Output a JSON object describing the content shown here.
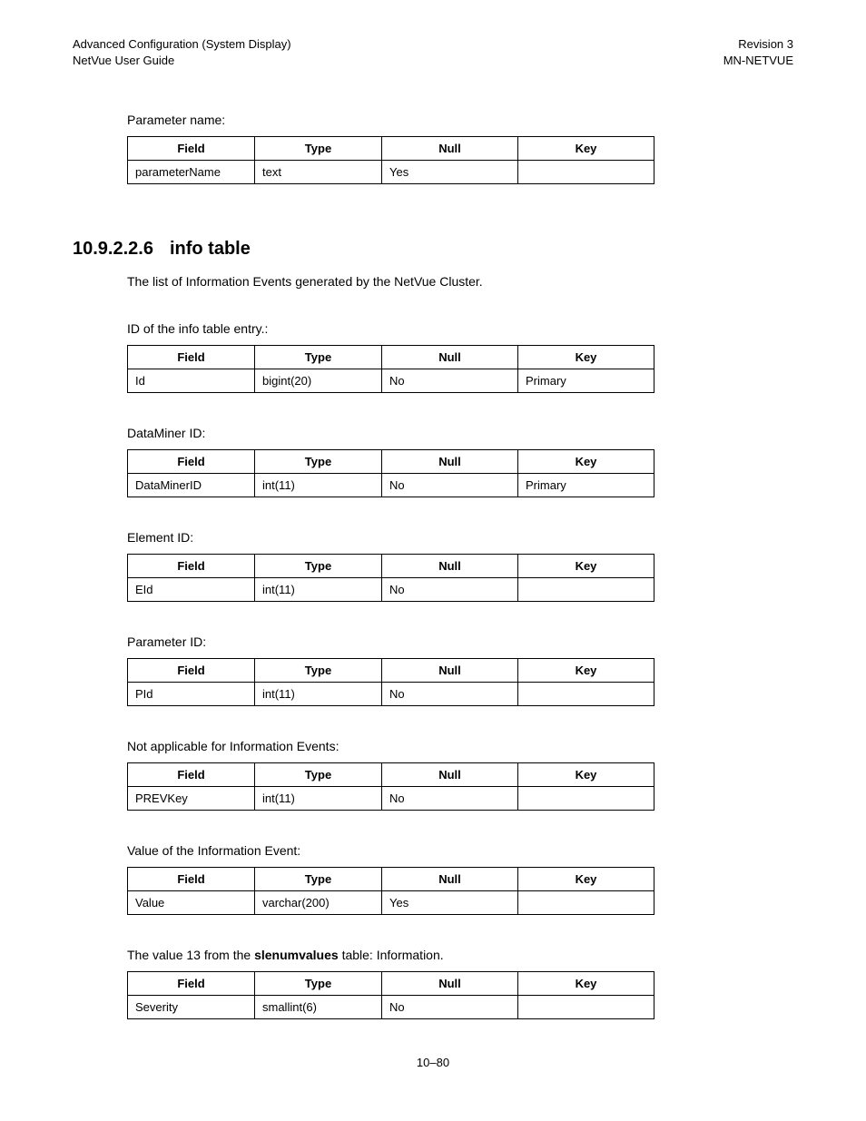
{
  "header": {
    "left_line1": "Advanced Configuration (System Display)",
    "left_line2": "NetVue User Guide",
    "right_line1": "Revision 3",
    "right_line2": "MN-NETVUE"
  },
  "columns": {
    "field": "Field",
    "type": "Type",
    "null": "Null",
    "key": "Key"
  },
  "top_section": {
    "desc": "Parameter name:",
    "row": {
      "field": "parameterName",
      "type": "text",
      "null": "Yes",
      "key": ""
    }
  },
  "section": {
    "number": "10.9.2.2.6",
    "title": "info table",
    "intro": "The list of Information Events generated by the NetVue Cluster."
  },
  "tables": [
    {
      "desc": "ID of the info table entry.:",
      "row": {
        "field": "Id",
        "type": "bigint(20)",
        "null": "No",
        "key": "Primary"
      }
    },
    {
      "desc": "DataMiner ID:",
      "row": {
        "field": "DataMinerID",
        "type": "int(11)",
        "null": "No",
        "key": "Primary"
      }
    },
    {
      "desc": "Element ID:",
      "row": {
        "field": "EId",
        "type": "int(11)",
        "null": "No",
        "key": ""
      }
    },
    {
      "desc": "Parameter ID:",
      "row": {
        "field": "PId",
        "type": "int(11)",
        "null": "No",
        "key": ""
      }
    },
    {
      "desc": "Not applicable for Information Events:",
      "row": {
        "field": "PREVKey",
        "type": "int(11)",
        "null": "No",
        "key": ""
      }
    },
    {
      "desc": "Value of the Information Event:",
      "row": {
        "field": "Value",
        "type": "varchar(200)",
        "null": "Yes",
        "key": ""
      }
    }
  ],
  "severity_block": {
    "desc_pre": "The value 13 from the ",
    "desc_bold": "slenumvalues",
    "desc_post": " table: Information.",
    "row": {
      "field": "Severity",
      "type": "smallint(6)",
      "null": "No",
      "key": ""
    }
  },
  "footer": {
    "page": "10–80"
  }
}
